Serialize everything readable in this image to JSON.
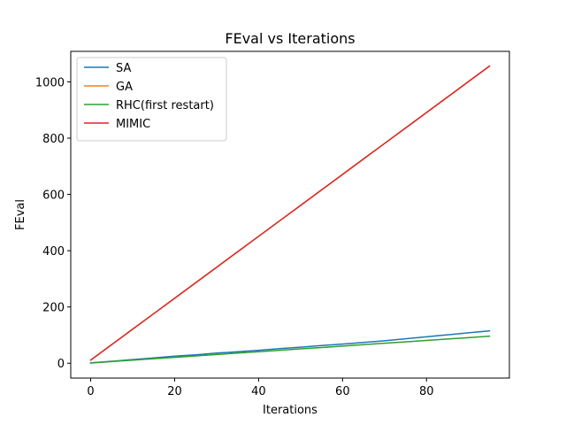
{
  "chart_data": {
    "type": "line",
    "title": "FEval vs Iterations",
    "xlabel": "Iterations",
    "ylabel": "FEval",
    "xlim": [
      -4.75,
      99.75
    ],
    "ylim": [
      -52.75,
      1108.5
    ],
    "xticks": [
      0,
      20,
      40,
      60,
      80
    ],
    "yticks": [
      0,
      200,
      400,
      600,
      800,
      1000
    ],
    "grid": false,
    "legend_position": "upper left",
    "series": [
      {
        "name": "SA",
        "color": "#1f77b4",
        "x": [
          0,
          5,
          10,
          15,
          20,
          25,
          30,
          35,
          40,
          45,
          50,
          55,
          60,
          65,
          70,
          75,
          80,
          85,
          90,
          95
        ],
        "y": [
          1,
          7,
          13,
          19,
          25,
          30,
          36,
          41,
          46,
          52,
          57,
          63,
          68,
          74,
          80,
          87,
          94,
          101,
          108,
          115
        ]
      },
      {
        "name": "GA",
        "color": "#ff7f0e",
        "x": [
          0,
          5,
          10,
          15,
          20,
          25,
          30,
          35,
          40,
          45,
          50,
          55,
          60,
          65,
          70,
          75,
          80,
          85,
          90,
          95
        ],
        "y": [
          11,
          66,
          121,
          176,
          231,
          286,
          341,
          396,
          451,
          506,
          561,
          616,
          671,
          726,
          781,
          836,
          891,
          946,
          1001,
          1056
        ]
      },
      {
        "name": "RHC(first restart)",
        "color": "#2ca02c",
        "x": [
          0,
          5,
          10,
          15,
          20,
          25,
          30,
          35,
          40,
          45,
          50,
          55,
          60,
          65,
          70,
          75,
          80,
          85,
          90,
          95
        ],
        "y": [
          1,
          6,
          11,
          16,
          21,
          26,
          31,
          36,
          41,
          46,
          51,
          56,
          61,
          66,
          71,
          76,
          81,
          86,
          91,
          96
        ]
      },
      {
        "name": "MIMIC",
        "color": "#d62728",
        "x": [
          0,
          5,
          10,
          15,
          20,
          25,
          30,
          35,
          40,
          45,
          50,
          55,
          60,
          65,
          70,
          75,
          80,
          85,
          90,
          95
        ],
        "y": [
          11,
          66,
          121,
          176,
          231,
          286,
          341,
          396,
          451,
          506,
          561,
          616,
          671,
          726,
          781,
          836,
          891,
          946,
          1001,
          1056
        ]
      }
    ]
  }
}
